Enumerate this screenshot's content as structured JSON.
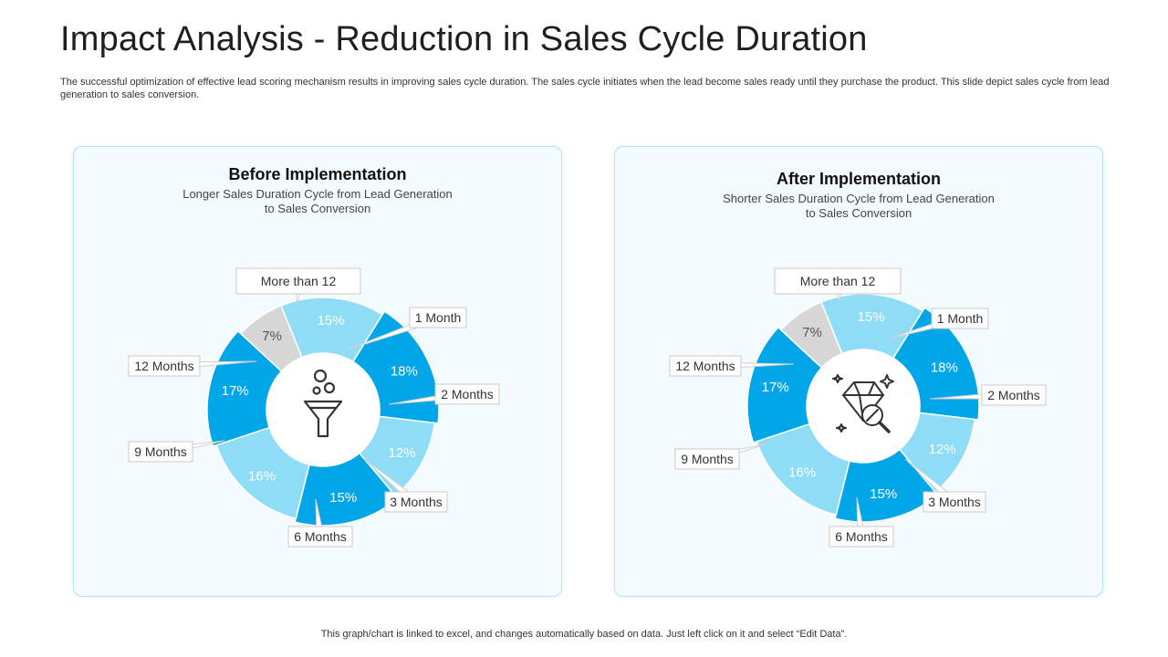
{
  "slide": {
    "title": "Impact Analysis - Reduction in Sales Cycle Duration",
    "description": "The successful optimization of effective lead scoring mechanism results in improving sales cycle duration. The sales cycle initiates when the lead become sales ready until they purchase the product. This slide depict sales cycle from lead generation to sales conversion.",
    "footer": "This graph/chart is linked to excel, and changes automatically based on data. Just left click on it and select “Edit Data”."
  },
  "colors": {
    "light_blue": "#8fdcf7",
    "mid_blue": "#00a6e8",
    "gray": "#d6d6d6",
    "card_border": "#b7e3f3"
  },
  "chart_data": [
    {
      "type": "pie",
      "title": "Before Implementation",
      "subtitle_lines": [
        "Longer Sales Duration Cycle  from Lead Generation",
        "to Sales Conversion"
      ],
      "center_icon": "funnel-icon",
      "categories": [
        "1 Month",
        "2 Months",
        "3 Months",
        "6 Months",
        "9 Months",
        "12 Months",
        "More than 12"
      ],
      "values": [
        15,
        18,
        12,
        15,
        16,
        17,
        7
      ],
      "value_labels": [
        "15%",
        "18%",
        "12%",
        "15%",
        "16%",
        "17%",
        "7%"
      ],
      "slice_colors": [
        "#8fdcf7",
        "#00a6e8",
        "#8fdcf7",
        "#00a6e8",
        "#8fdcf7",
        "#00a6e8",
        "#d6d6d6"
      ]
    },
    {
      "type": "pie",
      "title": "After Implementation",
      "subtitle_lines": [
        "Shorter Sales Duration Cycle  from Lead Generation",
        "to Sales Conversion"
      ],
      "center_icon": "diamond-search-icon",
      "categories": [
        "1 Month",
        "2 Months",
        "3 Months",
        "6 Months",
        "9 Months",
        "12 Months",
        "More than 12"
      ],
      "values": [
        15,
        18,
        12,
        15,
        16,
        17,
        7
      ],
      "value_labels": [
        "15%",
        "18%",
        "12%",
        "15%",
        "16%",
        "17%",
        "7%"
      ],
      "slice_colors": [
        "#8fdcf7",
        "#00a6e8",
        "#8fdcf7",
        "#00a6e8",
        "#8fdcf7",
        "#00a6e8",
        "#d6d6d6"
      ]
    }
  ]
}
